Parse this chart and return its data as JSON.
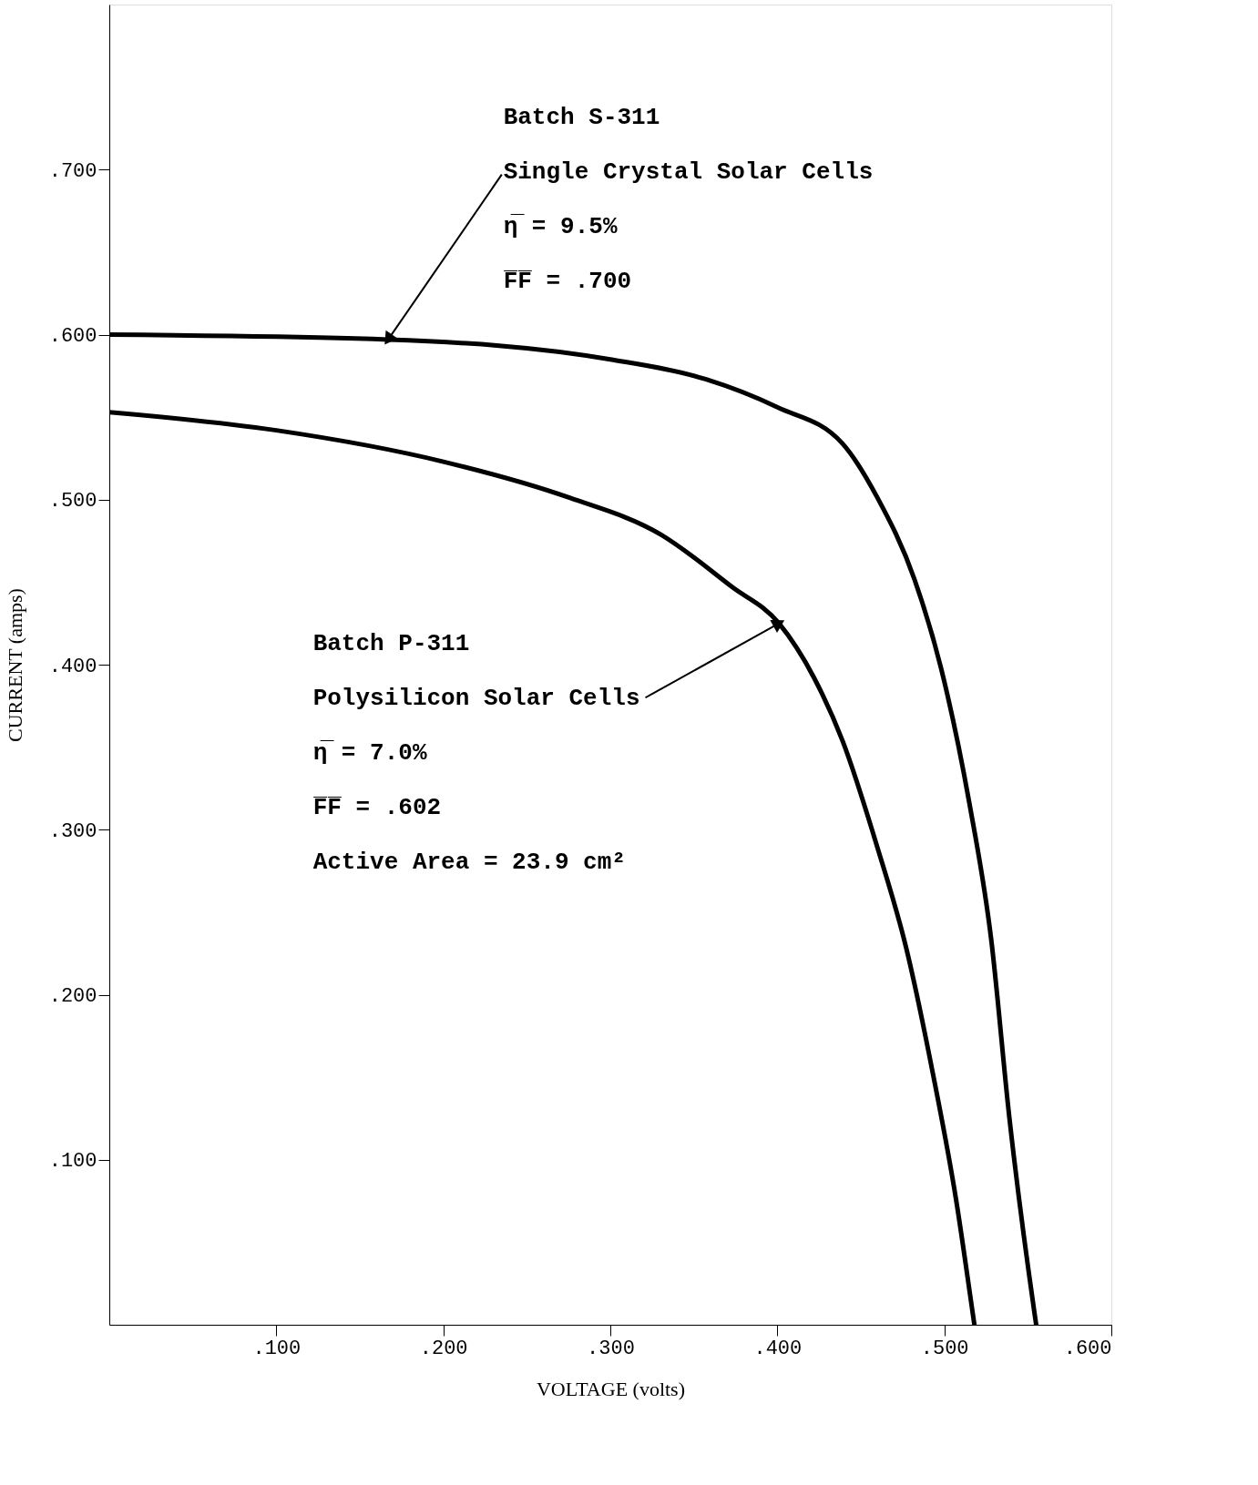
{
  "chart_data": {
    "type": "line",
    "xlabel": "VOLTAGE (volts)",
    "ylabel": "CURRENT (amps)",
    "xlim": [
      0,
      0.6
    ],
    "ylim": [
      0,
      0.8
    ],
    "xticks": [
      {
        "value": 0.1,
        "label": ".100"
      },
      {
        "value": 0.2,
        "label": ".200"
      },
      {
        "value": 0.3,
        "label": ".300"
      },
      {
        "value": 0.4,
        "label": ".400"
      },
      {
        "value": 0.5,
        "label": ".500"
      },
      {
        "value": 0.6,
        "label": ".600"
      }
    ],
    "yticks": [
      {
        "value": 0.1,
        "label": ".100"
      },
      {
        "value": 0.2,
        "label": ".200"
      },
      {
        "value": 0.3,
        "label": ".300"
      },
      {
        "value": 0.4,
        "label": ".400"
      },
      {
        "value": 0.5,
        "label": ".500"
      },
      {
        "value": 0.6,
        "label": ".600"
      },
      {
        "value": 0.7,
        "label": ".700"
      }
    ],
    "grid": false,
    "marker": "none",
    "line_style": "solid",
    "series": [
      {
        "color": "#000000",
        "x": [
          0,
          0.167,
          0.3,
          0.357,
          0.4,
          0.439,
          0.46,
          0.482,
          0.498,
          0.515,
          0.528,
          0.539,
          0.554,
          0.555
        ],
        "values": [
          0.6,
          0.597,
          0.585,
          0.573,
          0.556,
          0.534,
          0.501,
          0.452,
          0.398,
          0.316,
          0.234,
          0.125,
          0.007,
          0
        ]
      },
      {
        "color": "#000000",
        "x": [
          0,
          0.1,
          0.2,
          0.276,
          0.33,
          0.373,
          0.401,
          0.422,
          0.439,
          0.46,
          0.477,
          0.493,
          0.507,
          0.517,
          0.518
        ],
        "values": [
          0.553,
          0.542,
          0.523,
          0.501,
          0.479,
          0.447,
          0.425,
          0.392,
          0.354,
          0.289,
          0.229,
          0.153,
          0.076,
          0.007,
          0
        ]
      }
    ],
    "annotations": [
      {
        "text": "Single Crystal Solar Cells",
        "x": 0.167,
        "y": 0.597
      },
      "Batch S-311",
      "η̅ = 9.5%",
      "F̅F̅ = .700",
      {
        "text": "Polysilicon Solar Cells",
        "x": 0.401,
        "y": 0.425
      },
      "Batch P-311",
      "η̅ = 7.0%",
      "F̅F̅ = .602",
      "Active Area = 23.9 cm²"
    ]
  }
}
